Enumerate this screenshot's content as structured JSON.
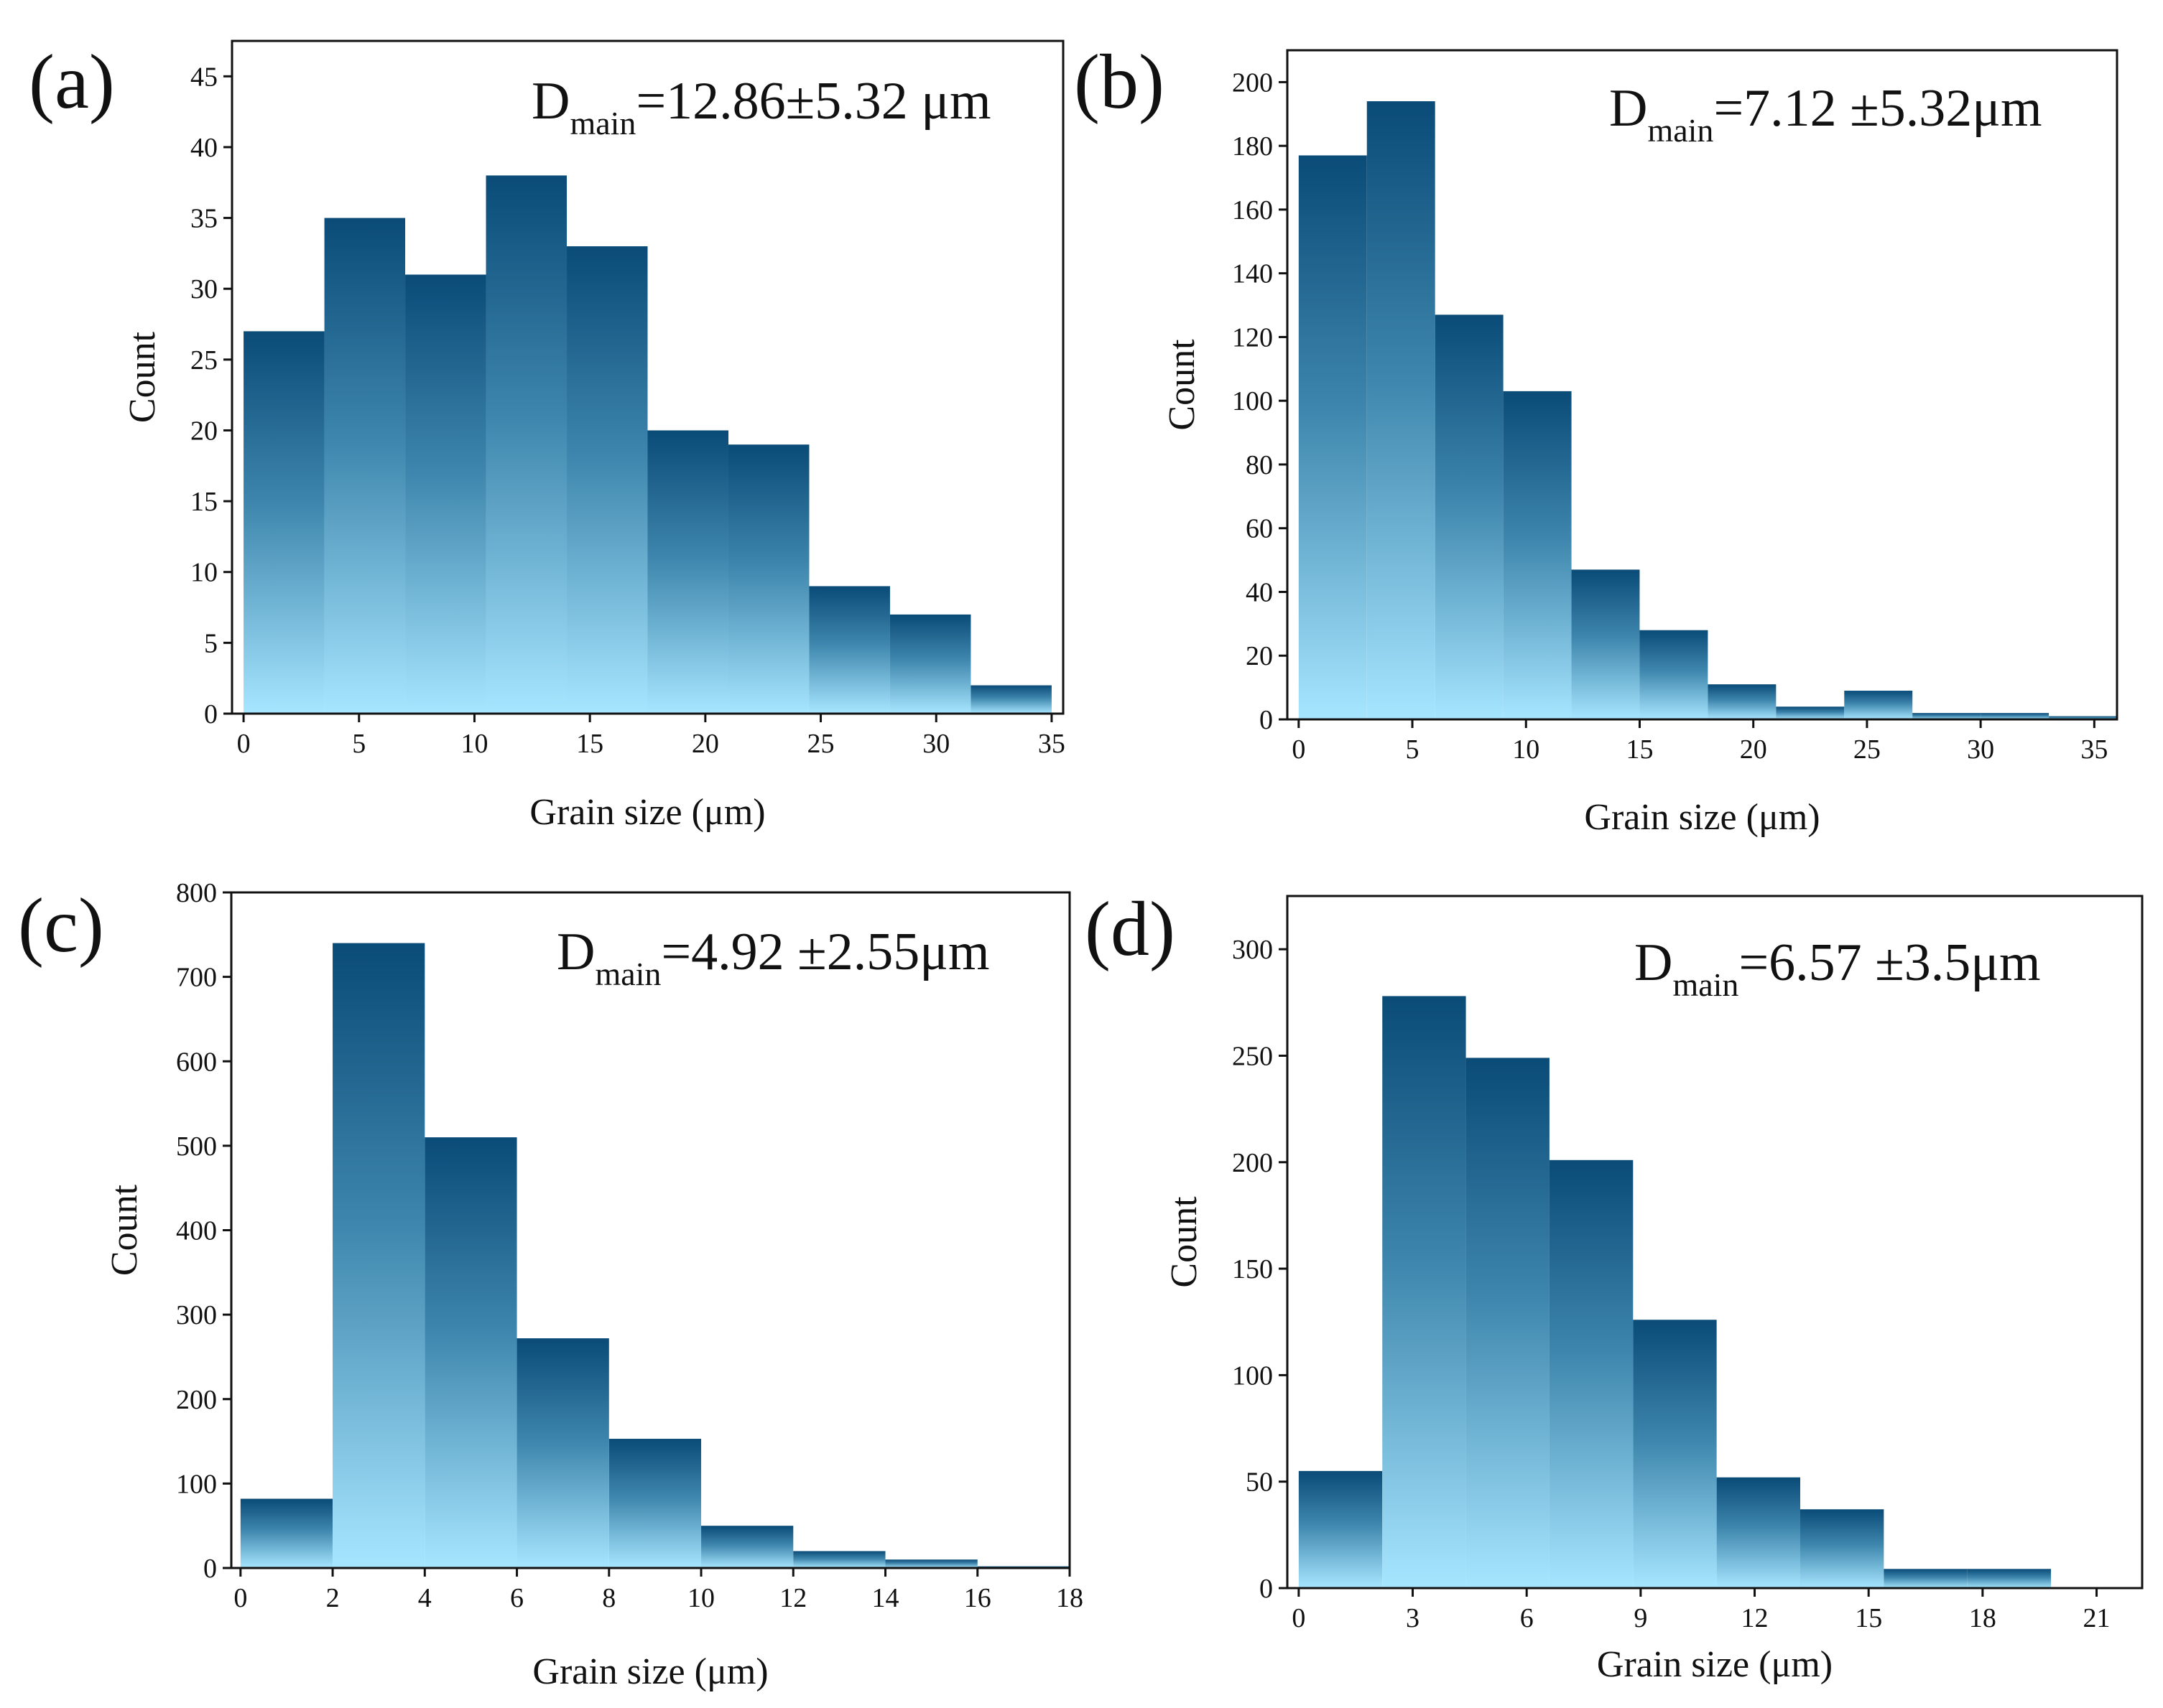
{
  "colors": {
    "bar_top": "#0a4b78",
    "bar_mid": "#3e86ad",
    "bar_bottom": "#a7e6ff",
    "axis": "#111111"
  },
  "chart_data": [
    {
      "id": "a",
      "type": "bar",
      "panel_label": "(a)",
      "annotation": {
        "prefix": "D",
        "sub": "main",
        "value": "=12.86±5.32 μm"
      },
      "xlabel": "Grain size (μm)",
      "ylabel": "Count",
      "xlim": [
        -0.5,
        35.5
      ],
      "ylim": [
        0,
        47.5
      ],
      "xticks": [
        0,
        5,
        10,
        15,
        20,
        25,
        30,
        35
      ],
      "yticks": [
        0,
        5,
        10,
        15,
        20,
        25,
        30,
        35,
        40,
        45
      ],
      "bin_start": 0,
      "bin_width": 3.5,
      "values": [
        27,
        35,
        31,
        38,
        33,
        20,
        19,
        9,
        7,
        2
      ]
    },
    {
      "id": "b",
      "type": "bar",
      "panel_label": "(b)",
      "annotation": {
        "prefix": "D",
        "sub": "main",
        "value": "=7.12 ±5.32μm"
      },
      "xlabel": "Grain size (μm)",
      "ylabel": "Count",
      "xlim": [
        -0.5,
        36
      ],
      "ylim": [
        0,
        210
      ],
      "xticks": [
        0,
        5,
        10,
        15,
        20,
        25,
        30,
        35
      ],
      "yticks": [
        0,
        20,
        40,
        60,
        80,
        100,
        120,
        140,
        160,
        180,
        200
      ],
      "bin_start": 0,
      "bin_width": 3,
      "values": [
        177,
        194,
        127,
        103,
        47,
        28,
        11,
        4,
        9,
        2,
        2,
        1
      ]
    },
    {
      "id": "c",
      "type": "bar",
      "panel_label": "(c)",
      "annotation": {
        "prefix": "D",
        "sub": "main",
        "value": "=4.92 ±2.55μm"
      },
      "xlabel": "Grain size (μm)",
      "ylabel": "Count",
      "xlim": [
        -0.2,
        18
      ],
      "ylim": [
        0,
        800
      ],
      "xticks": [
        0,
        2,
        4,
        6,
        8,
        10,
        12,
        14,
        16,
        18
      ],
      "yticks": [
        0,
        100,
        200,
        300,
        400,
        500,
        600,
        700,
        800
      ],
      "bin_start": 0,
      "bin_width": 2,
      "values": [
        82,
        740,
        510,
        272,
        153,
        50,
        20,
        10,
        2
      ]
    },
    {
      "id": "d",
      "type": "bar",
      "panel_label": "(d)",
      "annotation": {
        "prefix": "D",
        "sub": "main",
        "value": "=6.57 ±3.5μm"
      },
      "xlabel": "Grain size (μm)",
      "ylabel": "Count",
      "xlim": [
        -0.3,
        22.2
      ],
      "ylim": [
        0,
        325
      ],
      "xticks": [
        0,
        3,
        6,
        9,
        12,
        15,
        18,
        21
      ],
      "yticks": [
        0,
        50,
        100,
        150,
        200,
        250,
        300
      ],
      "bin_start": 0,
      "bin_width": 2.2,
      "values": [
        55,
        278,
        249,
        201,
        126,
        52,
        37,
        9,
        9
      ]
    }
  ]
}
